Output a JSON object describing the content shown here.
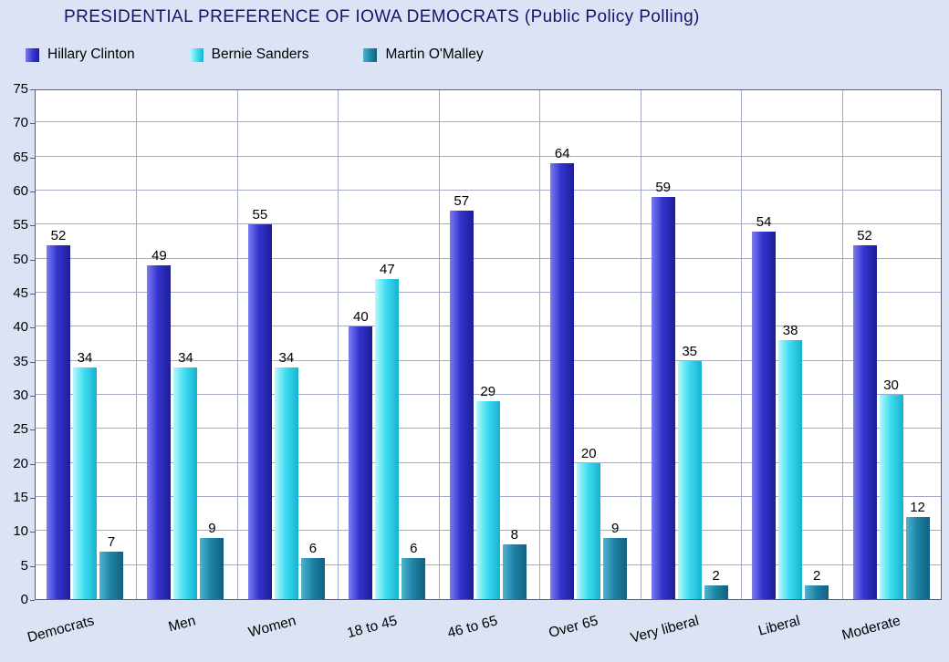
{
  "colors": {
    "page_background": "#dce3f5",
    "plot_background": "#ffffff",
    "title_text": "#15156e",
    "gridline": "#a2abc6",
    "axis": "#5a5f72",
    "label_text": "#000000"
  },
  "chart_data": {
    "type": "bar",
    "title": "PRESIDENTIAL PREFERENCE OF IOWA DEMOCRATS (Public Policy Polling)",
    "categories": [
      "Democrats",
      "Men",
      "Women",
      "18 to 45",
      "46 to 65",
      "Over 65",
      "Very liberal",
      "Liberal",
      "Moderate"
    ],
    "series": [
      {
        "name": "Hillary Clinton",
        "values": [
          52,
          49,
          55,
          40,
          57,
          64,
          59,
          54,
          52
        ],
        "color": {
          "light": "#7b7bf2",
          "base": "#3434cf",
          "dark": "#1d1d96"
        }
      },
      {
        "name": "Bernie Sanders",
        "values": [
          34,
          34,
          34,
          47,
          29,
          20,
          35,
          38,
          30
        ],
        "color": {
          "light": "#b9f7fc",
          "base": "#3fdef2",
          "dark": "#17b2ce"
        }
      },
      {
        "name": "Martin O'Malley",
        "values": [
          7,
          9,
          6,
          6,
          8,
          9,
          2,
          2,
          12
        ],
        "color": {
          "light": "#4fb3d1",
          "base": "#1f85a8",
          "dark": "#11607e"
        }
      }
    ],
    "xlabel": "",
    "ylabel": "",
    "ylim": [
      0,
      75
    ],
    "yticks": [
      0,
      5,
      10,
      15,
      20,
      25,
      30,
      35,
      40,
      45,
      50,
      55,
      60,
      65,
      70,
      75
    ],
    "grid": true,
    "legend_position": "top-left",
    "bar_value_labels": true,
    "x_label_rotation_deg": -15
  }
}
